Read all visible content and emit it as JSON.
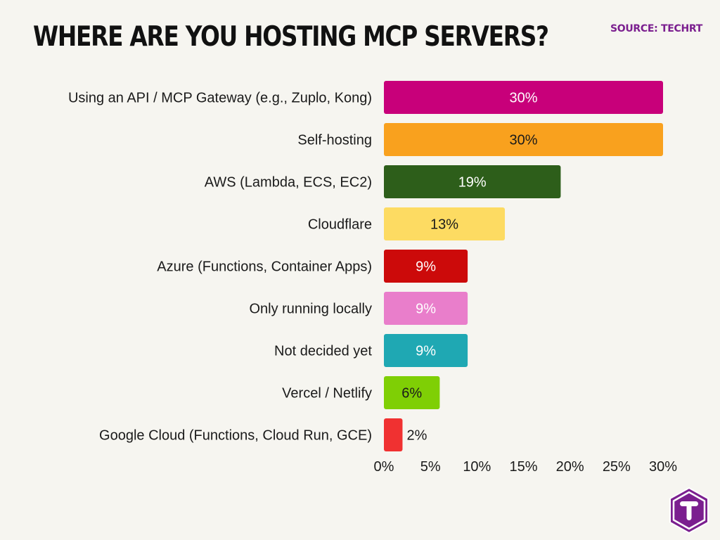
{
  "title": "WHERE ARE YOU HOSTING MCP SERVERS?",
  "source": "SOURCE: TECHRT",
  "logo_icon": "techrt-t-hexagon-icon",
  "chart_data": {
    "type": "bar",
    "orientation": "horizontal",
    "categories": [
      "Using an API / MCP Gateway (e.g., Zuplo, Kong)",
      "Self-hosting",
      "AWS (Lambda, ECS, EC2)",
      "Cloudflare",
      "Azure (Functions, Container Apps)",
      "Only running locally",
      "Not decided yet",
      "Vercel / Netlify",
      "Google Cloud (Functions, Cloud Run, GCE)"
    ],
    "values": [
      30,
      30,
      19,
      13,
      9,
      9,
      9,
      6,
      2
    ],
    "data_labels": [
      "30%",
      "30%",
      "19%",
      "13%",
      "9%",
      "9%",
      "9%",
      "6%",
      "2%"
    ],
    "colors": [
      "#c8007a",
      "#f9a11e",
      "#2d5e1a",
      "#fddb62",
      "#cc0a0a",
      "#e97ecb",
      "#1fa8b3",
      "#7fcf05",
      "#f03131"
    ],
    "label_colors": [
      "#ffffff",
      "#1a1a1a",
      "#ffffff",
      "#1a1a1a",
      "#ffffff",
      "#ffffff",
      "#ffffff",
      "#1a1a1a",
      "#1a1a1a"
    ],
    "xlim": [
      0,
      30
    ],
    "xticks": [
      0,
      5,
      10,
      15,
      20,
      25,
      30
    ],
    "xtick_labels": [
      "0%",
      "5%",
      "10%",
      "15%",
      "20%",
      "25%",
      "30%"
    ],
    "xlabel": "",
    "ylabel": "",
    "grid": false,
    "legend": false
  }
}
